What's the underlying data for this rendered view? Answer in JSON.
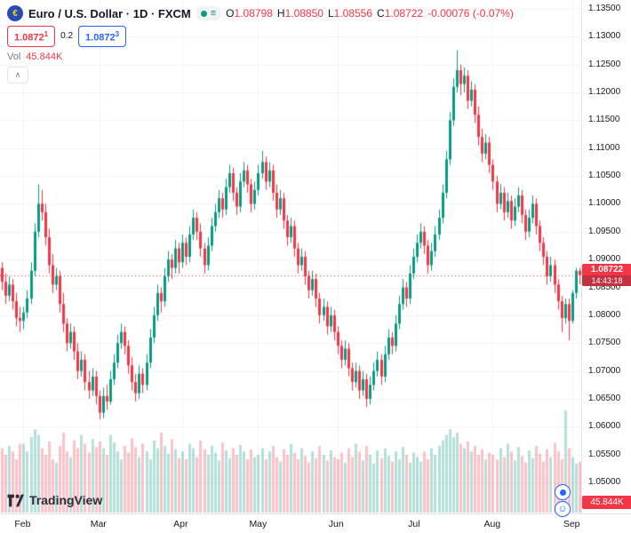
{
  "header": {
    "title": "Euro / U.S. Dollar · 1D · FXCM",
    "ohlc": {
      "o_label": "O",
      "o": "1.08798",
      "h_label": "H",
      "h": "1.08850",
      "l_label": "L",
      "l": "1.08556",
      "c_label": "C",
      "c": "1.08722",
      "change": "-0.00076 (-0.07%)"
    },
    "trade": {
      "sell_price": "1.0872",
      "sell_sup": "1",
      "spread": "0.2",
      "buy_price": "1.0872",
      "buy_sup": "3"
    },
    "volume": {
      "label": "Vol",
      "value": "45.844K"
    },
    "collapse_glyph": "∧"
  },
  "price_scale": {
    "labels": [
      "1.13500",
      "1.13000",
      "1.12500",
      "1.12000",
      "1.11500",
      "1.11000",
      "1.10500",
      "1.10000",
      "1.09500",
      "1.09000",
      "1.08500",
      "1.08000",
      "1.07500",
      "1.07000",
      "1.06500",
      "1.06000",
      "1.05500",
      "1.05000"
    ],
    "current": {
      "price": "1.08722",
      "countdown": "14:43:18"
    },
    "volume_badge": "45.844K"
  },
  "time_scale": {
    "months": [
      {
        "label": "Feb",
        "index": 6
      },
      {
        "label": "Mar",
        "index": 27
      },
      {
        "label": "Apr",
        "index": 50
      },
      {
        "label": "May",
        "index": 71
      },
      {
        "label": "Jun",
        "index": 93
      },
      {
        "label": "Jul",
        "index": 115
      },
      {
        "label": "Aug",
        "index": 136
      },
      {
        "label": "Sep",
        "index": 158
      }
    ]
  },
  "footer": {
    "brand": "TradingView"
  },
  "colors": {
    "up": "#089981",
    "down": "#f23645",
    "volume_up": "rgba(8,153,129,0.30)",
    "volume_down": "rgba(242,54,69,0.30)",
    "buy_blue": "#2962ff",
    "grid": "#f0f3fa",
    "axis_text": "#131722",
    "muted": "#787b86",
    "badge_red": "#f23645"
  },
  "chart_data": {
    "type": "candlestick+volume",
    "title": "Euro / U.S. Dollar, 1D, FXCM",
    "symbol": "EURUSD",
    "timeframe": "1D",
    "price_range": [
      1.05,
      1.135
    ],
    "ohlc_legend": {
      "open": 1.08798,
      "high": 1.0885,
      "low": 1.08556,
      "close": 1.08722,
      "change": -0.00076,
      "change_pct": -0.07
    },
    "last_volume": 45.844,
    "candles": [
      [
        1.0885,
        1.0895,
        1.0845,
        1.086
      ],
      [
        1.086,
        1.0875,
        1.082,
        1.0835
      ],
      [
        1.0835,
        1.087,
        1.0825,
        1.0855
      ],
      [
        1.0855,
        1.0865,
        1.081,
        1.0825
      ],
      [
        1.0825,
        1.084,
        1.078,
        1.0795
      ],
      [
        1.0795,
        1.0815,
        1.077,
        1.079
      ],
      [
        1.079,
        1.0815,
        1.0775,
        1.0805
      ],
      [
        1.0805,
        1.0845,
        1.0795,
        1.083
      ],
      [
        1.083,
        1.0895,
        1.082,
        1.088
      ],
      [
        1.088,
        1.0965,
        1.087,
        1.095
      ],
      [
        1.095,
        1.1035,
        1.094,
        1.1
      ],
      [
        1.1,
        1.1025,
        1.097,
        1.0985
      ],
      [
        1.0985,
        1.1,
        1.0925,
        1.094
      ],
      [
        1.094,
        1.0955,
        1.0875,
        1.089
      ],
      [
        1.089,
        1.091,
        1.084,
        1.0855
      ],
      [
        1.0855,
        1.0885,
        1.0845,
        1.087
      ],
      [
        1.087,
        1.088,
        1.0805,
        1.082
      ],
      [
        1.082,
        1.084,
        1.077,
        1.0785
      ],
      [
        1.0785,
        1.0795,
        1.0735,
        1.075
      ],
      [
        1.075,
        1.0785,
        1.074,
        1.077
      ],
      [
        1.077,
        1.078,
        1.072,
        1.0735
      ],
      [
        1.0735,
        1.075,
        1.0685,
        1.07
      ],
      [
        1.07,
        1.0735,
        1.069,
        1.072
      ],
      [
        1.072,
        1.073,
        1.0665,
        1.068
      ],
      [
        1.068,
        1.07,
        1.065,
        1.0665
      ],
      [
        1.0665,
        1.0705,
        1.0655,
        1.069
      ],
      [
        1.069,
        1.07,
        1.064,
        1.0655
      ],
      [
        1.0655,
        1.0665,
        1.0613,
        1.0625
      ],
      [
        1.0625,
        1.067,
        1.0615,
        1.0655
      ],
      [
        1.0655,
        1.0675,
        1.063,
        1.0645
      ],
      [
        1.0645,
        1.07,
        1.064,
        1.0685
      ],
      [
        1.0685,
        1.073,
        1.0675,
        1.0715
      ],
      [
        1.0715,
        1.0765,
        1.0705,
        1.075
      ],
      [
        1.075,
        1.0785,
        1.074,
        1.077
      ],
      [
        1.077,
        1.078,
        1.073,
        1.0745
      ],
      [
        1.0745,
        1.0755,
        1.0695,
        1.071
      ],
      [
        1.071,
        1.0725,
        1.0665,
        1.068
      ],
      [
        1.068,
        1.0695,
        1.0645,
        1.066
      ],
      [
        1.066,
        1.071,
        1.065,
        1.0695
      ],
      [
        1.0695,
        1.0705,
        1.066,
        1.0675
      ],
      [
        1.0675,
        1.073,
        1.0665,
        1.0715
      ],
      [
        1.0715,
        1.0775,
        1.0705,
        1.076
      ],
      [
        1.076,
        1.0815,
        1.075,
        1.08
      ],
      [
        1.08,
        1.0855,
        1.079,
        1.084
      ],
      [
        1.084,
        1.085,
        1.0805,
        1.0825
      ],
      [
        1.0825,
        1.0885,
        1.0815,
        1.087
      ],
      [
        1.087,
        1.0915,
        1.086,
        1.09
      ],
      [
        1.09,
        1.091,
        1.0865,
        1.0885
      ],
      [
        1.0885,
        1.0935,
        1.0875,
        1.092
      ],
      [
        1.092,
        1.093,
        1.0875,
        1.0895
      ],
      [
        1.0895,
        1.0945,
        1.0885,
        1.093
      ],
      [
        1.093,
        1.094,
        1.089,
        1.0905
      ],
      [
        1.0905,
        1.096,
        1.0895,
        1.0945
      ],
      [
        1.0945,
        1.099,
        1.0935,
        1.0975
      ],
      [
        1.0975,
        1.0985,
        1.0935,
        1.095
      ],
      [
        1.095,
        1.0965,
        1.0905,
        1.092
      ],
      [
        1.092,
        1.093,
        1.0875,
        1.089
      ],
      [
        1.089,
        1.094,
        1.088,
        1.0925
      ],
      [
        1.0925,
        1.0975,
        1.0915,
        1.096
      ],
      [
        1.096,
        1.1,
        1.095,
        1.0985
      ],
      [
        1.0985,
        1.1025,
        1.0975,
        1.101
      ],
      [
        1.101,
        1.102,
        1.0975,
        1.099
      ],
      [
        1.099,
        1.1045,
        1.098,
        1.103
      ],
      [
        1.103,
        1.107,
        1.102,
        1.1055
      ],
      [
        1.1055,
        1.1065,
        1.1005,
        1.102
      ],
      [
        1.102,
        1.103,
        1.098,
        1.0995
      ],
      [
        1.0995,
        1.1055,
        1.0985,
        1.104
      ],
      [
        1.104,
        1.1075,
        1.103,
        1.106
      ],
      [
        1.106,
        1.107,
        1.102,
        1.1035
      ],
      [
        1.1035,
        1.1045,
        1.0985,
        1.1
      ],
      [
        1.1,
        1.104,
        1.099,
        1.1025
      ],
      [
        1.1025,
        1.107,
        1.1015,
        1.1055
      ],
      [
        1.1055,
        1.1095,
        1.1045,
        1.1075
      ],
      [
        1.1075,
        1.1085,
        1.1025,
        1.104
      ],
      [
        1.104,
        1.1075,
        1.103,
        1.106
      ],
      [
        1.106,
        1.107,
        1.1005,
        1.102
      ],
      [
        1.102,
        1.1035,
        1.0975,
        1.099
      ],
      [
        1.099,
        1.1025,
        1.098,
        1.101
      ],
      [
        1.101,
        1.102,
        1.0955,
        1.097
      ],
      [
        1.097,
        1.098,
        1.0925,
        1.094
      ],
      [
        1.094,
        1.0975,
        1.093,
        1.096
      ],
      [
        1.096,
        1.097,
        1.0905,
        1.092
      ],
      [
        1.092,
        1.093,
        1.0875,
        1.089
      ],
      [
        1.089,
        1.092,
        1.088,
        1.0905
      ],
      [
        1.0905,
        1.0915,
        1.0855,
        1.087
      ],
      [
        1.087,
        1.088,
        1.083,
        1.0845
      ],
      [
        1.0845,
        1.088,
        1.0835,
        1.0865
      ],
      [
        1.0865,
        1.0875,
        1.0815,
        1.083
      ],
      [
        1.083,
        1.084,
        1.0785,
        1.08
      ],
      [
        1.08,
        1.083,
        1.079,
        1.0815
      ],
      [
        1.0815,
        1.0825,
        1.0765,
        1.078
      ],
      [
        1.078,
        1.0815,
        1.077,
        1.08
      ],
      [
        1.08,
        1.081,
        1.0755,
        1.077
      ],
      [
        1.077,
        1.078,
        1.073,
        1.0745
      ],
      [
        1.0745,
        1.0755,
        1.0705,
        1.072
      ],
      [
        1.072,
        1.0755,
        1.071,
        1.074
      ],
      [
        1.074,
        1.075,
        1.069,
        1.0705
      ],
      [
        1.0705,
        1.0715,
        1.0665,
        1.068
      ],
      [
        1.068,
        1.0715,
        1.067,
        1.07
      ],
      [
        1.07,
        1.071,
        1.065,
        1.0665
      ],
      [
        1.0665,
        1.07,
        1.0655,
        1.0685
      ],
      [
        1.0685,
        1.0695,
        1.0635,
        1.065
      ],
      [
        1.065,
        1.069,
        1.064,
        1.0675
      ],
      [
        1.0675,
        1.0715,
        1.0665,
        1.07
      ],
      [
        1.07,
        1.0735,
        1.069,
        1.072
      ],
      [
        1.072,
        1.073,
        1.0675,
        1.069
      ],
      [
        1.069,
        1.0745,
        1.068,
        1.073
      ],
      [
        1.073,
        1.0775,
        1.072,
        1.076
      ],
      [
        1.076,
        1.077,
        1.073,
        1.0745
      ],
      [
        1.0745,
        1.08,
        1.0735,
        1.0785
      ],
      [
        1.0785,
        1.0835,
        1.0775,
        1.082
      ],
      [
        1.082,
        1.0865,
        1.081,
        1.085
      ],
      [
        1.085,
        1.086,
        1.0815,
        1.083
      ],
      [
        1.083,
        1.089,
        1.082,
        1.0875
      ],
      [
        1.0875,
        1.092,
        1.0865,
        1.0905
      ],
      [
        1.0905,
        1.0945,
        1.0895,
        1.093
      ],
      [
        1.093,
        1.0965,
        1.092,
        1.095
      ],
      [
        1.095,
        1.096,
        1.091,
        1.0925
      ],
      [
        1.0925,
        1.0935,
        1.0875,
        1.089
      ],
      [
        1.089,
        1.093,
        1.088,
        1.0915
      ],
      [
        1.0915,
        1.096,
        1.0905,
        1.0945
      ],
      [
        1.0945,
        1.099,
        1.0935,
        1.0975
      ],
      [
        1.0975,
        1.1035,
        1.0965,
        1.102
      ],
      [
        1.102,
        1.1095,
        1.101,
        1.108
      ],
      [
        1.108,
        1.1165,
        1.107,
        1.115
      ],
      [
        1.115,
        1.1225,
        1.114,
        1.121
      ],
      [
        1.121,
        1.1276,
        1.12,
        1.124
      ],
      [
        1.124,
        1.125,
        1.1195,
        1.1215
      ],
      [
        1.1215,
        1.1245,
        1.12,
        1.123
      ],
      [
        1.123,
        1.124,
        1.117,
        1.1185
      ],
      [
        1.1185,
        1.122,
        1.1175,
        1.1205
      ],
      [
        1.1205,
        1.1215,
        1.1145,
        1.116
      ],
      [
        1.116,
        1.1175,
        1.1105,
        1.112
      ],
      [
        1.112,
        1.1135,
        1.1075,
        1.109
      ],
      [
        1.109,
        1.1125,
        1.108,
        1.111
      ],
      [
        1.111,
        1.112,
        1.1055,
        1.107
      ],
      [
        1.107,
        1.108,
        1.1025,
        1.104
      ],
      [
        1.104,
        1.105,
        1.0985,
        1.1
      ],
      [
        1.1,
        1.1035,
        1.099,
        1.102
      ],
      [
        1.102,
        1.103,
        1.097,
        1.0985
      ],
      [
        1.0985,
        1.102,
        1.0975,
        1.1005
      ],
      [
        1.1005,
        1.1015,
        1.0955,
        1.097
      ],
      [
        1.097,
        1.101,
        1.096,
        1.0995
      ],
      [
        1.0995,
        1.103,
        1.0985,
        1.1015
      ],
      [
        1.1015,
        1.1025,
        1.0965,
        1.098
      ],
      [
        1.098,
        1.099,
        1.0935,
        1.095
      ],
      [
        1.095,
        1.099,
        1.094,
        1.0975
      ],
      [
        1.0975,
        1.1015,
        1.0965,
        1.1
      ],
      [
        1.1,
        1.101,
        1.0945,
        1.096
      ],
      [
        1.096,
        1.097,
        1.0915,
        1.093
      ],
      [
        1.093,
        1.094,
        1.089,
        1.0905
      ],
      [
        1.0905,
        1.0915,
        1.0855,
        1.087
      ],
      [
        1.087,
        1.0905,
        1.086,
        1.089
      ],
      [
        1.089,
        1.09,
        1.084,
        1.0855
      ],
      [
        1.0855,
        1.0865,
        1.081,
        1.0825
      ],
      [
        1.0825,
        1.0835,
        1.077,
        1.0795
      ],
      [
        1.0795,
        1.083,
        1.0785,
        1.082
      ],
      [
        1.082,
        1.083,
        1.0755,
        1.079
      ],
      [
        1.079,
        1.0845,
        1.0785,
        1.084
      ],
      [
        1.084,
        1.0885,
        1.083,
        1.08798
      ],
      [
        1.08798,
        1.0885,
        1.08556,
        1.08722
      ]
    ],
    "volumes": [
      58,
      52,
      60,
      55,
      48,
      62,
      62,
      55,
      68,
      75,
      70,
      58,
      52,
      64,
      48,
      45,
      60,
      72,
      55,
      50,
      65,
      58,
      70,
      62,
      54,
      66,
      59,
      64,
      58,
      52,
      70,
      63,
      55,
      48,
      60,
      54,
      67,
      59,
      50,
      62,
      55,
      48,
      65,
      58,
      72,
      60,
      53,
      66,
      57,
      49,
      55,
      48,
      62,
      58,
      50,
      65,
      57,
      52,
      60,
      54,
      47,
      63,
      56,
      49,
      58,
      52,
      61,
      55,
      48,
      57,
      50,
      52,
      58,
      48,
      55,
      60,
      50,
      46,
      57,
      52,
      62,
      54,
      48,
      58,
      51,
      45,
      55,
      49,
      60,
      52,
      47,
      56,
      50,
      48,
      54,
      45,
      58,
      50,
      62,
      55,
      47,
      60,
      52,
      44,
      56,
      49,
      58,
      51,
      46,
      55,
      48,
      59,
      52,
      45,
      54,
      50,
      46,
      55,
      48,
      58,
      52,
      60,
      65,
      70,
      75,
      68,
      72,
      62,
      58,
      64,
      55,
      60,
      52,
      57,
      48,
      54,
      52,
      48,
      58,
      50,
      62,
      55,
      47,
      59,
      51,
      45,
      56,
      49,
      60,
      53,
      46,
      57,
      50,
      63,
      55,
      48,
      92,
      58,
      50,
      44,
      45.844
    ]
  }
}
